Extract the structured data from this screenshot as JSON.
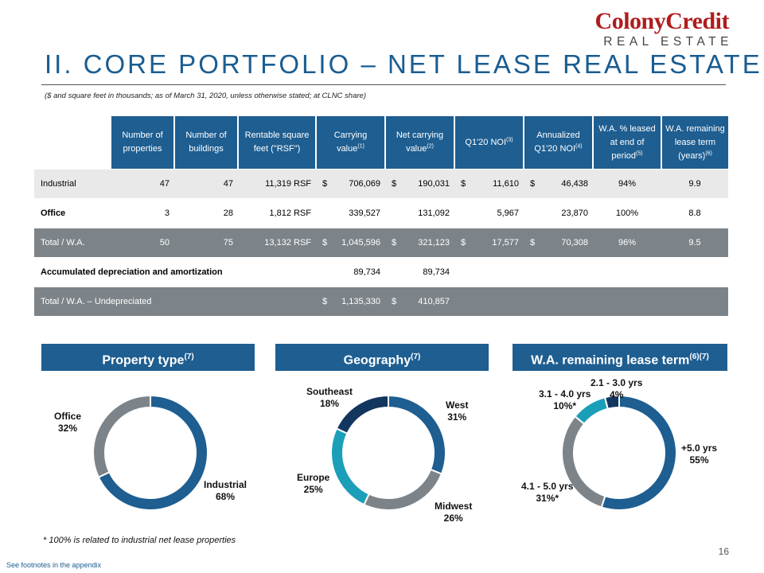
{
  "logo": {
    "line1": "ColonyCredit",
    "line2": "REAL ESTATE"
  },
  "title": "II. CORE PORTFOLIO – NET LEASE REAL ESTATE",
  "subtitle": "($ and square feet in thousands; as of March 31, 2020, unless otherwise stated; at CLNC share)",
  "table": {
    "headers": [
      {
        "text": "Number of properties",
        "sup": ""
      },
      {
        "text": "Number of buildings",
        "sup": ""
      },
      {
        "text": "Rentable square feet (\"RSF\")",
        "sup": ""
      },
      {
        "text": "Carrying value",
        "sup": "(1)"
      },
      {
        "text": "Net carrying value",
        "sup": "(2)"
      },
      {
        "text": "Q1'20 NOI",
        "sup": "(3)"
      },
      {
        "text": "Annualized Q1'20 NOI",
        "sup": "(4)"
      },
      {
        "text": "W.A. % leased at end of period",
        "sup": "(5)"
      },
      {
        "text": "W.A. remaining lease term (years)",
        "sup": "(6)"
      }
    ],
    "rows": [
      {
        "label": "Industrial",
        "style": "gray",
        "bold": false,
        "properties": "47",
        "buildings": "47",
        "rsf": "11,319 RSF",
        "carrying_cs": "$",
        "carrying": "706,069",
        "net_cs": "$",
        "net": "190,031",
        "noi_cs": "$",
        "noi": "11,610",
        "ann_cs": "$",
        "ann": "46,438",
        "leased": "94%",
        "term": "9.9"
      },
      {
        "label": "Office",
        "style": "white",
        "bold": true,
        "properties": "3",
        "buildings": "28",
        "rsf": "1,812 RSF",
        "carrying_cs": "",
        "carrying": "339,527",
        "net_cs": "",
        "net": "131,092",
        "noi_cs": "",
        "noi": "5,967",
        "ann_cs": "",
        "ann": "23,870",
        "leased": "100%",
        "term": "8.8"
      },
      {
        "label": "Total / W.A.",
        "style": "total",
        "bold": false,
        "properties": "50",
        "buildings": "75",
        "rsf": "13,132 RSF",
        "carrying_cs": "$",
        "carrying": "1,045,596",
        "net_cs": "$",
        "net": "321,123",
        "noi_cs": "$",
        "noi": "17,577",
        "ann_cs": "$",
        "ann": "70,308",
        "leased": "96%",
        "term": "9.5"
      },
      {
        "label": "Accumulated depreciation and amortization",
        "style": "white",
        "bold": true,
        "properties": "",
        "buildings": "",
        "rsf": "",
        "carrying_cs": "",
        "carrying": "89,734",
        "net_cs": "",
        "net": "89,734",
        "noi_cs": "",
        "noi": "",
        "ann_cs": "",
        "ann": "",
        "leased": "",
        "term": ""
      },
      {
        "label": "Total / W.A. – Undepreciated",
        "style": "total",
        "bold": false,
        "properties": "",
        "buildings": "",
        "rsf": "",
        "carrying_cs": "$",
        "carrying": "1,135,330",
        "net_cs": "$",
        "net": "410,857",
        "noi_cs": "",
        "noi": "",
        "ann_cs": "",
        "ann": "",
        "leased": "",
        "term": ""
      }
    ]
  },
  "panels": [
    {
      "title": "Property type",
      "title_sup": "(7)",
      "segments": [
        {
          "name": "Industrial",
          "label": "68%",
          "value": 68,
          "color": "#1e5e91"
        },
        {
          "name": "Office",
          "label": "32%",
          "value": 32,
          "color": "#7d8489"
        }
      ]
    },
    {
      "title": "Geography",
      "title_sup": "(7)",
      "segments": [
        {
          "name": "West",
          "label": "31%",
          "value": 31,
          "color": "#1e5e91"
        },
        {
          "name": "Midwest",
          "label": "26%",
          "value": 26,
          "color": "#7d8489"
        },
        {
          "name": "Europe",
          "label": "25%",
          "value": 25,
          "color": "#1b9fb9"
        },
        {
          "name": "Southeast",
          "label": "18%",
          "value": 18,
          "color": "#13365e"
        }
      ]
    },
    {
      "title": "W.A. remaining lease term",
      "title_sup": "(6)(7)",
      "segments": [
        {
          "name": "+5.0 yrs",
          "label": "55%",
          "value": 55,
          "color": "#1e5e91"
        },
        {
          "name": "4.1 - 5.0 yrs",
          "label": "31%*",
          "value": 31,
          "color": "#7d8489"
        },
        {
          "name": "3.1 - 4.0 yrs",
          "label": "10%*",
          "value": 10,
          "color": "#1b9fb9"
        },
        {
          "name": "2.1 - 3.0 yrs",
          "label": "4%",
          "value": 4,
          "color": "#13365e"
        }
      ]
    }
  ],
  "footnote_star": "* 100% is related to industrial net lease properties",
  "footnote_see": "See footnotes in the appendix",
  "page_number": "16"
}
